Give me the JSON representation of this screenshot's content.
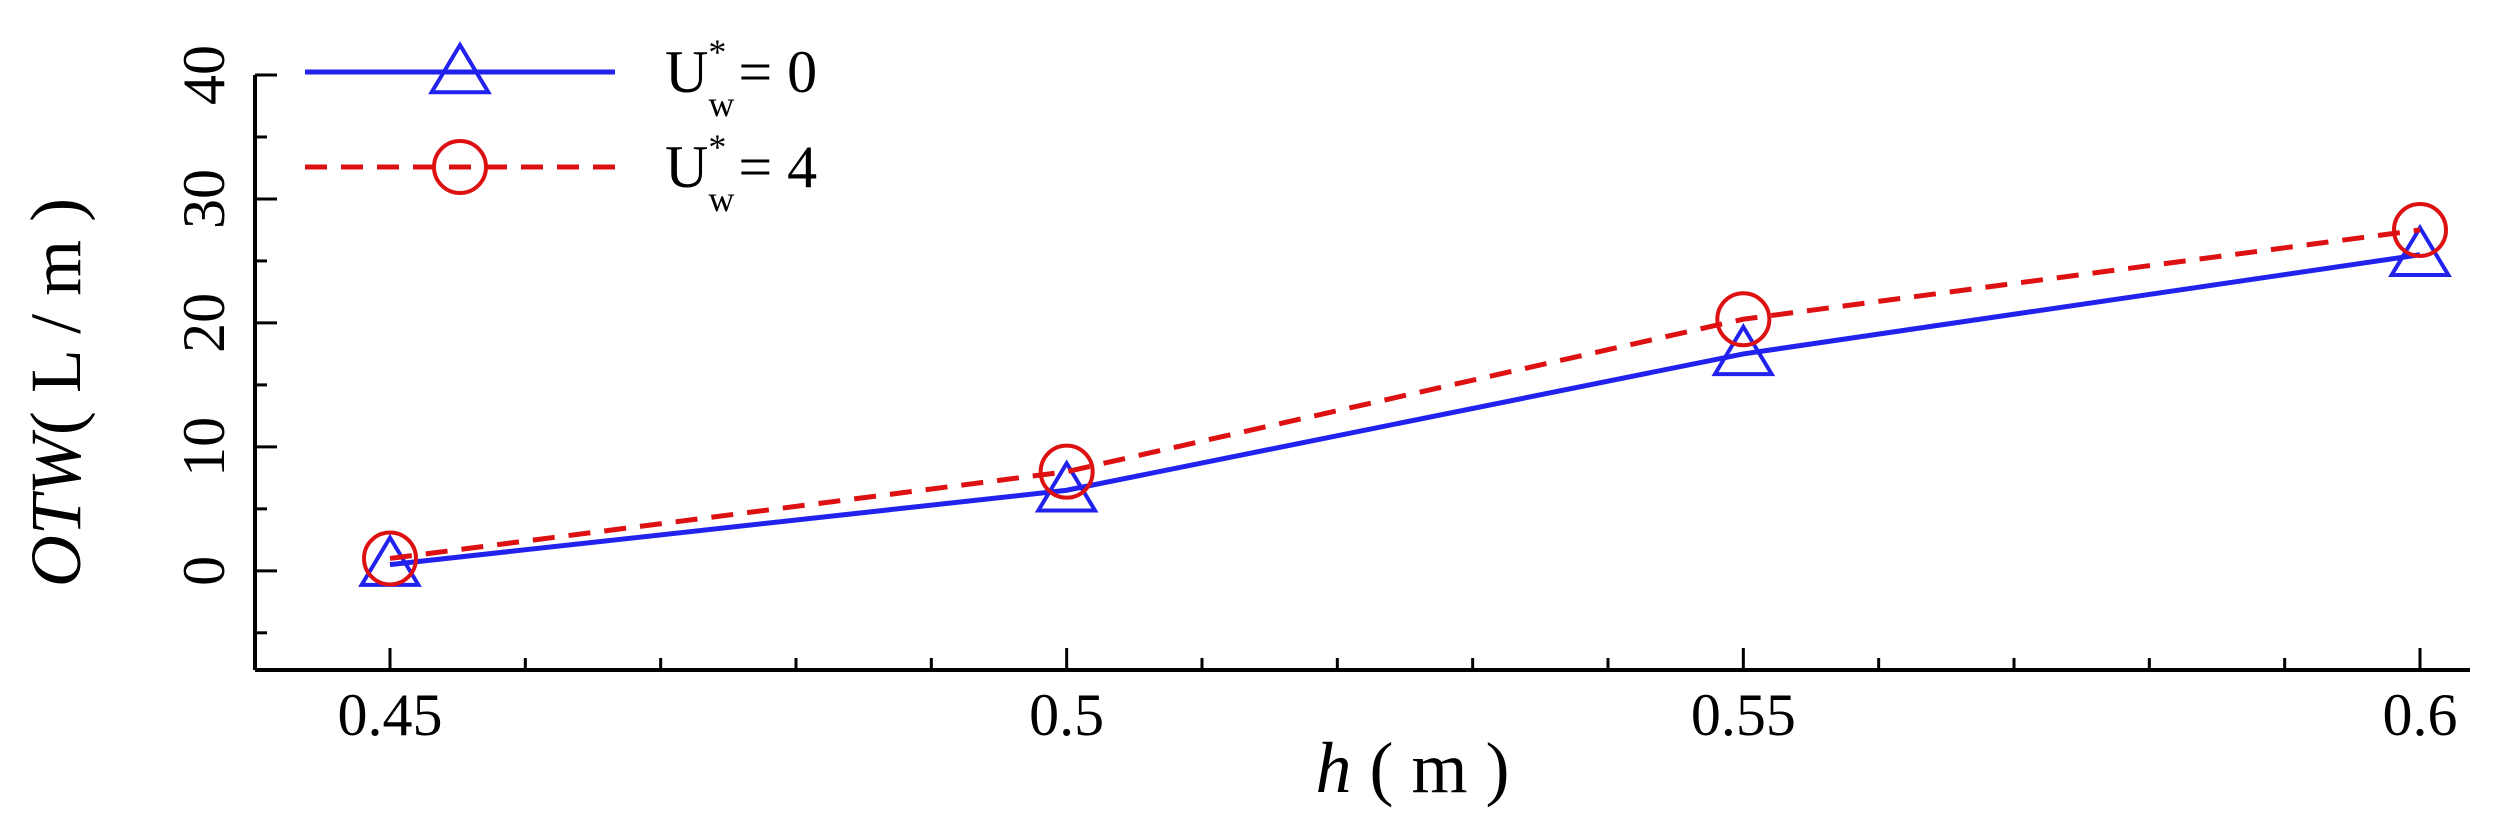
{
  "chart_data": {
    "type": "line",
    "xlabel": {
      "var": "h",
      "unit": "( m )"
    },
    "ylabel": {
      "var": "OTW",
      "unit": "( L / m )"
    },
    "xlim": [
      0.45,
      0.6
    ],
    "ylim": [
      -8,
      40
    ],
    "x_ticks": [
      0.45,
      0.5,
      0.55,
      0.6
    ],
    "x_tick_labels": [
      "0.45",
      "0.5",
      "0.55",
      "0.6"
    ],
    "y_ticks": [
      0,
      10,
      20,
      30,
      40
    ],
    "y_tick_labels": [
      "0",
      "10",
      "20",
      "30",
      "40"
    ],
    "grid": false,
    "legend_position": "top-left",
    "x": [
      0.45,
      0.5,
      0.55,
      0.6
    ],
    "series": [
      {
        "name": "U_w^* = 0",
        "legend": {
          "base": "U",
          "sup": "*",
          "sub": "w",
          "rest": "= 0"
        },
        "values": [
          0.5,
          6.5,
          17.5,
          25.5
        ],
        "color": "#2222ee",
        "dash": "solid",
        "marker": "triangle"
      },
      {
        "name": "U_w^* = 4",
        "legend": {
          "base": "U",
          "sup": "*",
          "sub": "w",
          "rest": "= 4"
        },
        "values": [
          1.0,
          8.0,
          20.3,
          27.5
        ],
        "color": "#dd1111",
        "dash": "dashed",
        "marker": "circle"
      }
    ]
  }
}
